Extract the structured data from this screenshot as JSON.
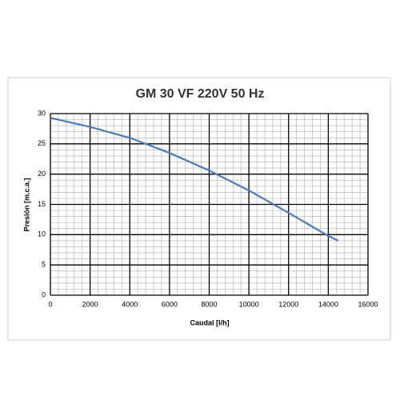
{
  "chart_data": {
    "type": "line",
    "title": "GM 30 VF 220V 50 Hz",
    "x_label": "Caudal [l/h]",
    "y_label": "Presión [m.c.a.]",
    "x": [
      0,
      2000,
      4000,
      6000,
      8000,
      10000,
      12000,
      14000,
      14500
    ],
    "series": [
      {
        "name": "GM 30 VF",
        "color": "#4a7ebb",
        "values": [
          29.3,
          27.8,
          26.0,
          23.5,
          20.6,
          17.3,
          13.6,
          9.8,
          9.0
        ]
      }
    ],
    "xlim": [
      0,
      16000
    ],
    "xticks": [
      0,
      2000,
      4000,
      6000,
      8000,
      10000,
      12000,
      14000,
      16000
    ],
    "ylim": [
      0,
      30
    ],
    "yticks": [
      0,
      5,
      10,
      15,
      20,
      25,
      30
    ],
    "grid": true,
    "minor_grid_divisions": 5,
    "legend": false
  }
}
